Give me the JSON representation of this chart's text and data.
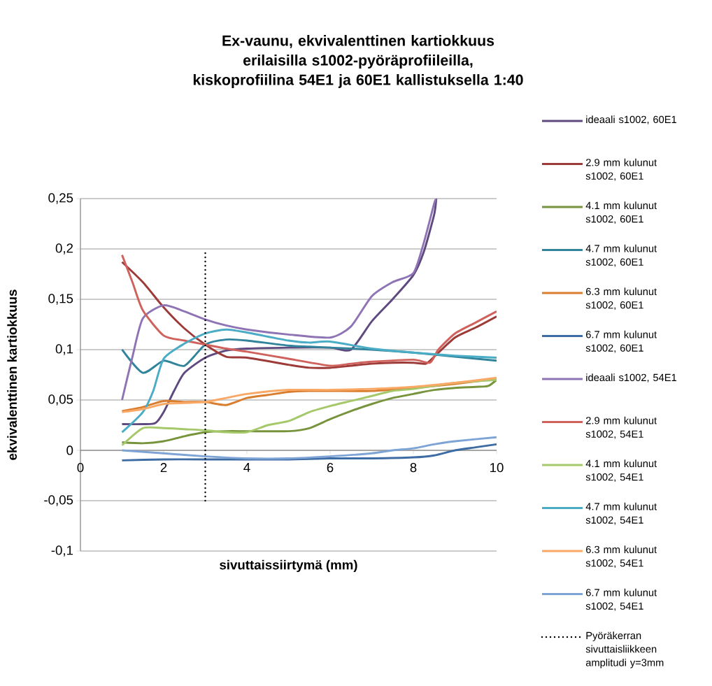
{
  "chart_data": {
    "type": "line",
    "title": "Ex-vaunu, ekvivalenttinen kartiokkuus erilaisilla s1002-pyöräprofiileilla, kiskoprofiilina 54E1 ja 60E1 kallistuksella 1:40",
    "xlabel": "sivuttaissiirtymä (mm)",
    "ylabel": "ekvivalenttinen kartiokkuus",
    "xlim": [
      0,
      10
    ],
    "xticks": [
      0,
      2,
      4,
      6,
      8,
      10
    ],
    "ylim": [
      -0.1,
      0.25
    ],
    "yticks": [
      {
        "value": -0.1,
        "label": "-0,1"
      },
      {
        "value": -0.05,
        "label": "-0,05"
      },
      {
        "value": 0,
        "label": "0"
      },
      {
        "value": 0.05,
        "label": "0,05"
      },
      {
        "value": 0.1,
        "label": "0,1"
      },
      {
        "value": 0.15,
        "label": "0,15"
      },
      {
        "value": 0.2,
        "label": "0,2"
      },
      {
        "value": 0.25,
        "label": "0,25"
      }
    ],
    "grid": "y",
    "legend": "right",
    "marker": "none",
    "line_style": "solid",
    "series": [
      {
        "name": "ideaali s1002, 60E1",
        "color": "#5f4a7f",
        "x": [
          1,
          1.5,
          1.8,
          2,
          2.25,
          2.5,
          3,
          3.5,
          4,
          5,
          6,
          6.5,
          7,
          7.5,
          8,
          8.25,
          8.5,
          8.55
        ],
        "values": [
          0.026,
          0.026,
          0.027,
          0.038,
          0.059,
          0.077,
          0.092,
          0.099,
          0.101,
          0.102,
          0.102,
          0.1,
          0.128,
          0.15,
          0.174,
          0.197,
          0.234,
          0.25
        ]
      },
      {
        "name": "2.9 mm kulunut s1002, 60E1",
        "color": "#9c3b38",
        "x": [
          1,
          1.5,
          2,
          2.5,
          3,
          3.5,
          4,
          5,
          5.5,
          6,
          6.5,
          7,
          7.5,
          8,
          8.3,
          8.5,
          9,
          9.5,
          10
        ],
        "values": [
          0.187,
          0.167,
          0.142,
          0.121,
          0.105,
          0.093,
          0.092,
          0.085,
          0.082,
          0.082,
          0.084,
          0.086,
          0.087,
          0.087,
          0.086,
          0.093,
          0.112,
          0.122,
          0.133
        ]
      },
      {
        "name": "4.1 mm kulunut s1002, 60E1",
        "color": "#77943c",
        "x": [
          1,
          1.5,
          2,
          2.5,
          3,
          3.5,
          4,
          5,
          5.5,
          6,
          6.5,
          7,
          7.5,
          8,
          8.5,
          9,
          9.5,
          9.8,
          10
        ],
        "values": [
          0.008,
          0.007,
          0.009,
          0.014,
          0.018,
          0.019,
          0.019,
          0.019,
          0.022,
          0.031,
          0.039,
          0.046,
          0.052,
          0.056,
          0.06,
          0.062,
          0.063,
          0.064,
          0.07
        ]
      },
      {
        "name": "4.7 mm kulunut s1002, 60E1",
        "color": "#31849b",
        "x": [
          1,
          1.5,
          2,
          2.5,
          3,
          3.5,
          4,
          5,
          5.5,
          6,
          7,
          8,
          9,
          10
        ],
        "values": [
          0.1,
          0.077,
          0.089,
          0.084,
          0.105,
          0.11,
          0.109,
          0.104,
          0.103,
          0.102,
          0.1,
          0.097,
          0.093,
          0.089
        ]
      },
      {
        "name": "6.3 mm kulunut s1002, 60E1",
        "color": "#d97d2e",
        "x": [
          1,
          1.5,
          2,
          2.5,
          3,
          3.5,
          4,
          4.5,
          5,
          5.5,
          6,
          7,
          8,
          9,
          10
        ],
        "values": [
          0.039,
          0.043,
          0.049,
          0.048,
          0.048,
          0.045,
          0.052,
          0.055,
          0.058,
          0.059,
          0.059,
          0.059,
          0.062,
          0.066,
          0.071
        ]
      },
      {
        "name": "6.7 mm kulunut s1002, 60E1",
        "color": "#3d6ba3",
        "x": [
          1,
          2,
          3,
          4,
          5,
          6,
          7,
          8,
          8.5,
          9,
          9.5,
          10
        ],
        "values": [
          -0.01,
          -0.009,
          -0.009,
          -0.009,
          -0.009,
          -0.008,
          -0.008,
          -0.007,
          -0.005,
          0,
          0.003,
          0.006
        ]
      },
      {
        "name": "ideaali s1002, 54E1",
        "color": "#8e74b5",
        "x": [
          1,
          1.25,
          1.5,
          2,
          2.5,
          3,
          3.5,
          4,
          5,
          6,
          6.5,
          7,
          7.5,
          8,
          8.25,
          8.5,
          8.55
        ],
        "values": [
          0.05,
          0.093,
          0.131,
          0.144,
          0.138,
          0.13,
          0.124,
          0.12,
          0.115,
          0.112,
          0.123,
          0.153,
          0.167,
          0.176,
          0.206,
          0.245,
          0.25
        ]
      },
      {
        "name": "2.9 mm kulunut s1002, 54E1",
        "color": "#d0625d",
        "x": [
          1,
          1.25,
          1.5,
          2,
          2.5,
          3,
          3.5,
          4,
          5,
          6,
          6.5,
          7,
          8,
          8.4,
          8.6,
          9,
          9.5,
          10
        ],
        "values": [
          0.194,
          0.167,
          0.139,
          0.114,
          0.109,
          0.105,
          0.101,
          0.098,
          0.091,
          0.084,
          0.086,
          0.088,
          0.09,
          0.087,
          0.1,
          0.116,
          0.127,
          0.138
        ]
      },
      {
        "name": "4.1 mm kulunut s1002, 54E1",
        "color": "#a5c96a",
        "x": [
          1,
          1.5,
          2,
          2.5,
          3,
          3.5,
          4,
          4.5,
          5,
          5.5,
          6,
          6.5,
          7,
          7.5,
          8,
          9,
          10
        ],
        "values": [
          0.005,
          0.022,
          0.022,
          0.021,
          0.02,
          0.018,
          0.018,
          0.025,
          0.029,
          0.038,
          0.044,
          0.049,
          0.054,
          0.059,
          0.061,
          0.067,
          0.07
        ]
      },
      {
        "name": "4.7 mm kulunut s1002, 54E1",
        "color": "#4bacc6",
        "x": [
          1,
          1.5,
          1.75,
          2,
          2.5,
          3,
          3.5,
          4,
          5,
          5.5,
          6,
          7,
          8,
          9,
          10
        ],
        "values": [
          0.018,
          0.038,
          0.059,
          0.091,
          0.106,
          0.116,
          0.12,
          0.117,
          0.109,
          0.107,
          0.108,
          0.101,
          0.097,
          0.094,
          0.092
        ]
      },
      {
        "name": "6.3 mm kulunut s1002, 54E1",
        "color": "#f9a865",
        "x": [
          1,
          1.5,
          2,
          2.5,
          3,
          3.5,
          4,
          5,
          6,
          7,
          8,
          9,
          10
        ],
        "values": [
          0.038,
          0.041,
          0.046,
          0.047,
          0.048,
          0.052,
          0.056,
          0.06,
          0.06,
          0.061,
          0.063,
          0.067,
          0.072
        ]
      },
      {
        "name": "6.7 mm kulunut s1002, 54E1",
        "color": "#7ea4d6",
        "x": [
          1,
          2,
          3,
          4,
          5,
          6,
          7,
          7.5,
          8,
          8.5,
          9,
          10
        ],
        "values": [
          0,
          -0.003,
          -0.006,
          -0.008,
          -0.008,
          -0.006,
          -0.003,
          0,
          0.002,
          0.006,
          0.009,
          0.013
        ]
      },
      {
        "name": "Pyöräkerran sivuttaisliikkeen amplitudi y=3mm",
        "color": "#000000",
        "line_style": "dotted",
        "x": [
          3,
          3
        ],
        "values": [
          -0.05,
          0.196
        ]
      }
    ]
  }
}
